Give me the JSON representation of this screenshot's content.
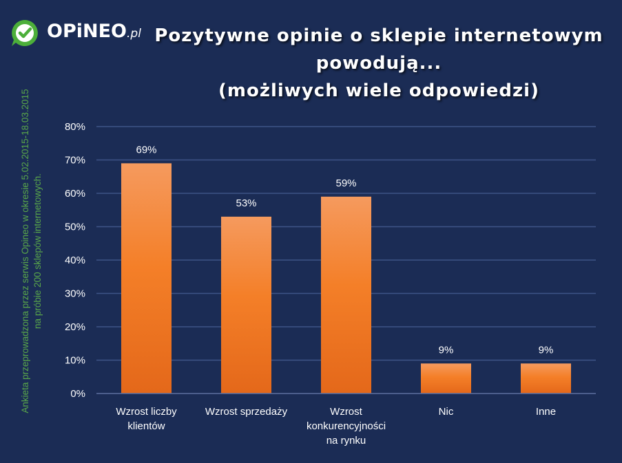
{
  "brand": {
    "name": "OPiNEO",
    "suffix": ".pl",
    "icon": "check-speech-bubble-icon",
    "colors": {
      "green": "#4caf3a",
      "background": "#1b2c55",
      "bar": "#f07a22"
    }
  },
  "title_lines": [
    "Pozytywne opinie o sklepie internetowym",
    "powodują...",
    "(możliwych wiele odpowiedzi)"
  ],
  "side_note_lines": [
    "Ankieta przeprowadzona przez serwis Opineo w okresie 5.02.2015-18.03.2015",
    "na próbie 200 sklepów internetowych."
  ],
  "chart_data": {
    "type": "bar",
    "title": "Pozytywne opinie o sklepie internetowym powodują... (możliwych wiele odpowiedzi)",
    "categories": [
      [
        "Wzrost liczby",
        "klientów"
      ],
      [
        "Wzrost sprzedaży"
      ],
      [
        "Wzrost",
        "konkurencyjności",
        "na rynku"
      ],
      [
        "Nic"
      ],
      [
        "Inne"
      ]
    ],
    "values": [
      69,
      53,
      59,
      9,
      9
    ],
    "value_labels": [
      "69%",
      "53%",
      "59%",
      "9%",
      "9%"
    ],
    "ylim": [
      0,
      80
    ],
    "ytick_values": [
      0,
      10,
      20,
      30,
      40,
      50,
      60,
      70,
      80
    ],
    "ytick_labels": [
      "0%",
      "10%",
      "20%",
      "30%",
      "40%",
      "50%",
      "60%",
      "70%",
      "80%"
    ],
    "xlabel": "",
    "ylabel": "",
    "grid": true,
    "legend": "none"
  }
}
